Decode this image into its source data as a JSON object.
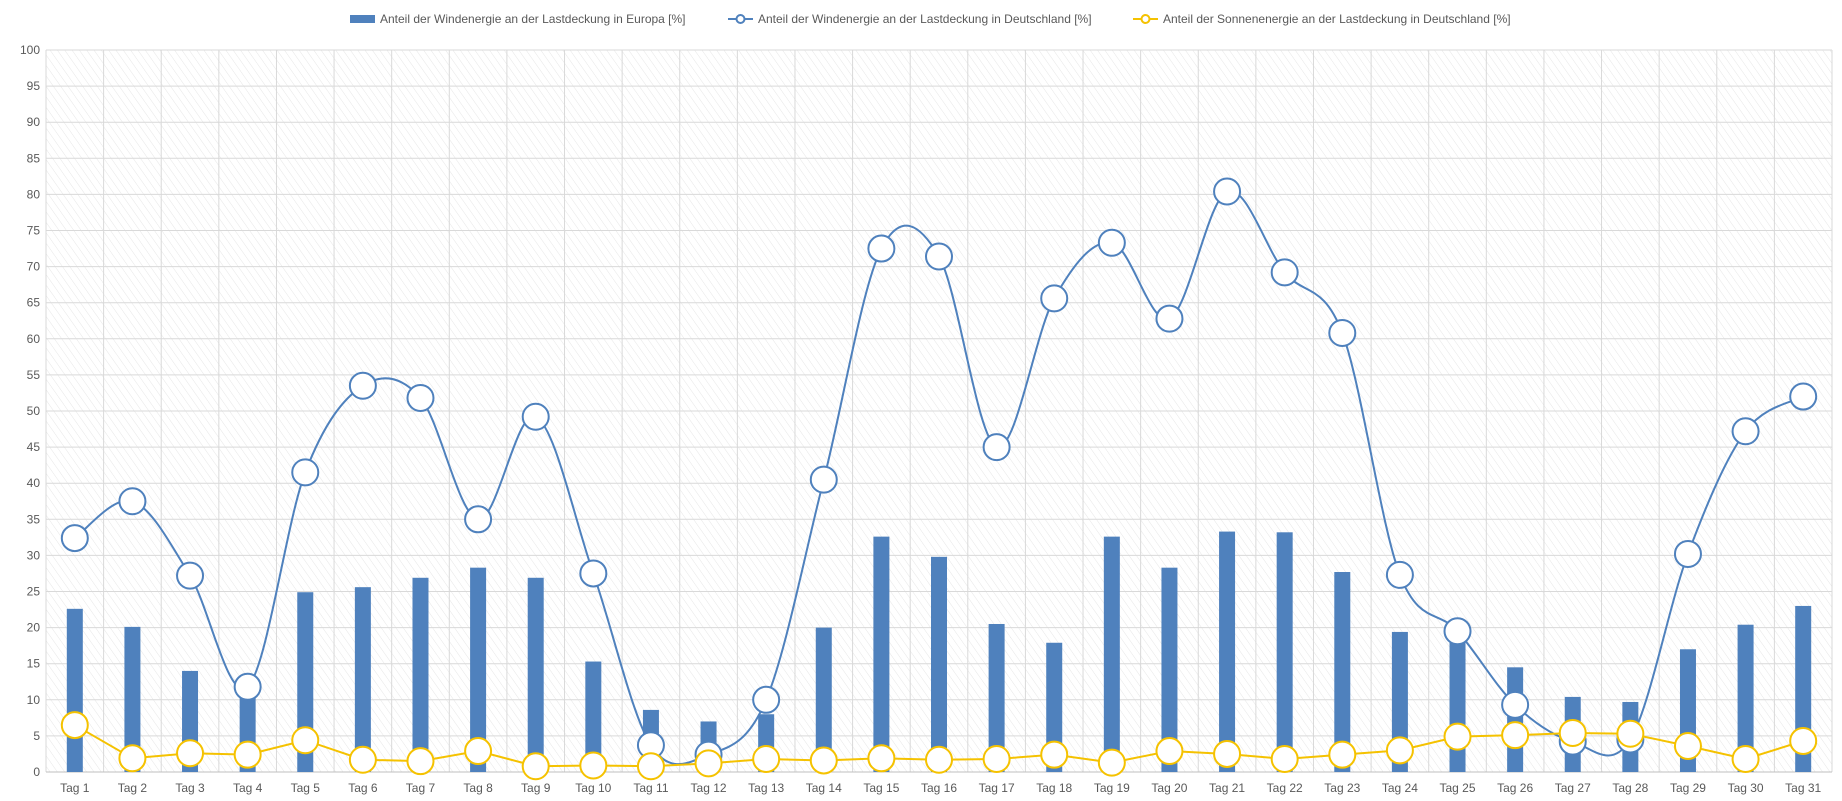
{
  "chart_data": {
    "type": "bar",
    "categories": [
      "Tag 1",
      "Tag 2",
      "Tag 3",
      "Tag 4",
      "Tag 5",
      "Tag 6",
      "Tag 7",
      "Tag 8",
      "Tag 9",
      "Tag 10",
      "Tag 11",
      "Tag 12",
      "Tag 13",
      "Tag 14",
      "Tag 15",
      "Tag 16",
      "Tag 17",
      "Tag 18",
      "Tag 19",
      "Tag 20",
      "Tag 21",
      "Tag 22",
      "Tag 23",
      "Tag 24",
      "Tag 25",
      "Tag 26",
      "Tag 27",
      "Tag 28",
      "Tag 29",
      "Tag 30",
      "Tag 31"
    ],
    "series": [
      {
        "name": "Anteil der Windenergie an der Lastdeckung in Europa [%]",
        "type": "bar",
        "color": "#4f81bd",
        "values": [
          22.6,
          20.1,
          14.0,
          11.5,
          24.9,
          25.6,
          26.9,
          28.3,
          26.9,
          15.3,
          8.6,
          7.0,
          8.0,
          20.0,
          32.6,
          29.8,
          20.5,
          17.9,
          32.6,
          28.3,
          33.3,
          33.2,
          27.7,
          19.4,
          18.6,
          14.5,
          10.4,
          9.7,
          17.0,
          20.4,
          23.0
        ]
      },
      {
        "name": "Anteil der Windenergie an der Lastdeckung in Deutschland [%]",
        "type": "line",
        "smooth": true,
        "color": "#4f81bd",
        "values": [
          32.4,
          37.5,
          27.2,
          11.8,
          41.5,
          53.5,
          51.8,
          35.0,
          49.2,
          27.5,
          3.7,
          2.4,
          10.0,
          40.5,
          72.5,
          71.4,
          45.0,
          65.6,
          73.3,
          62.8,
          80.4,
          69.2,
          60.8,
          27.3,
          19.5,
          9.3,
          4.2,
          4.5,
          30.2,
          47.2,
          52.0
        ]
      },
      {
        "name": "Anteil der Sonnenenergie an der Lastdeckung in Deutschland [%]",
        "type": "line",
        "smooth": false,
        "color": "#f5c200",
        "values": [
          6.5,
          1.9,
          2.6,
          2.4,
          4.4,
          1.7,
          1.5,
          2.9,
          0.8,
          0.9,
          0.8,
          1.2,
          1.8,
          1.6,
          1.9,
          1.7,
          1.8,
          2.4,
          1.3,
          2.9,
          2.5,
          1.8,
          2.4,
          3.0,
          4.9,
          5.1,
          5.4,
          5.3,
          3.6,
          1.8,
          4.3
        ]
      }
    ],
    "ylim": [
      0,
      100
    ],
    "ytick_step": 5,
    "title": "",
    "xlabel": "",
    "ylabel": "",
    "grid": true,
    "legend_position": "top-center"
  }
}
